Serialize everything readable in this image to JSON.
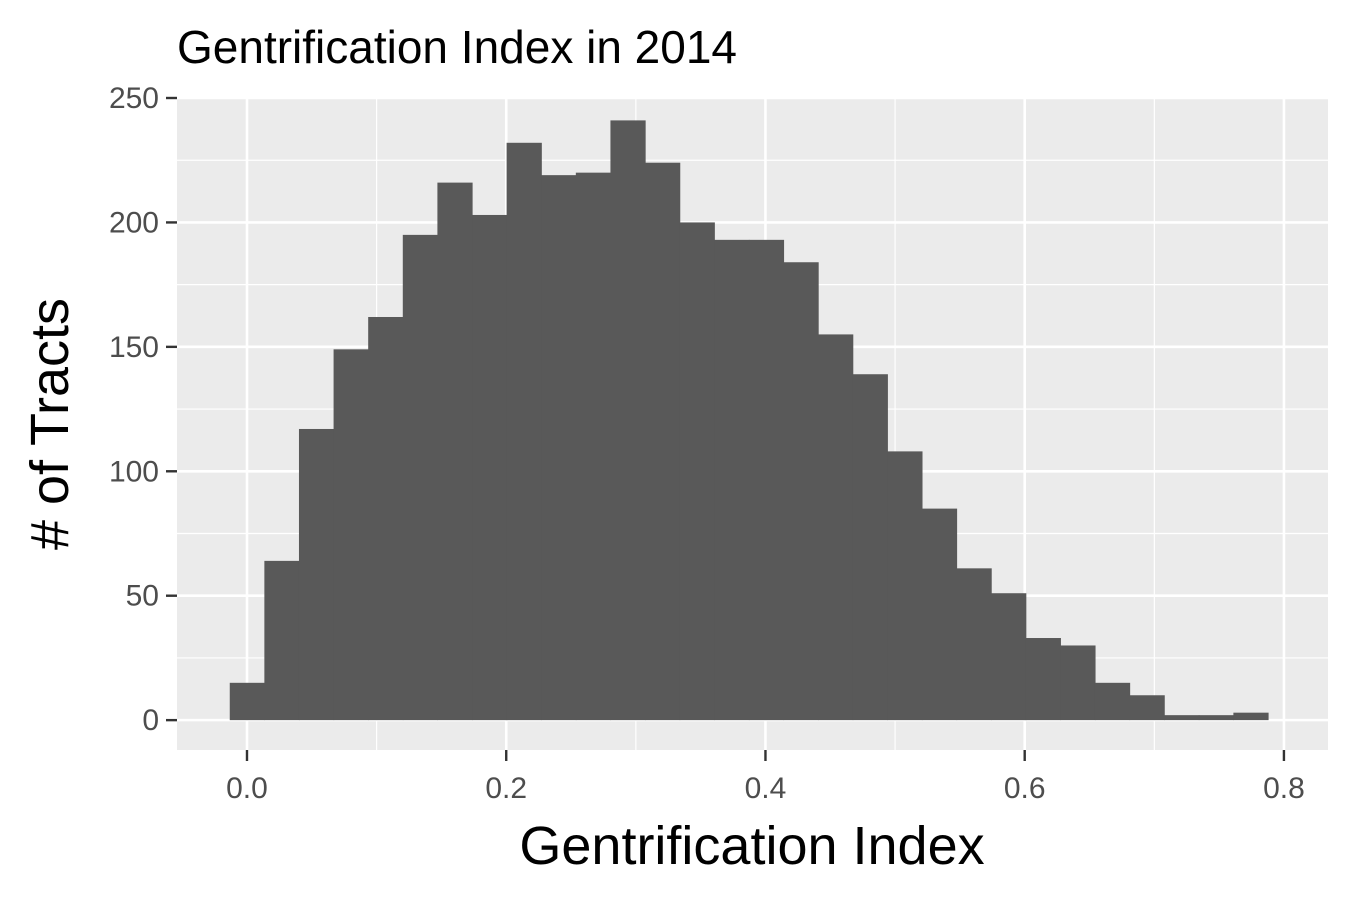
{
  "chart_data": {
    "type": "bar",
    "subtype": "histogram",
    "title": "Gentrification Index in 2014",
    "xlabel": "Gentrification Index",
    "ylabel": "# of Tracts",
    "xlim": [
      -0.054,
      0.834
    ],
    "ylim": [
      -12,
      250
    ],
    "x_ticks": [
      "0.0",
      "0.2",
      "0.4",
      "0.6",
      "0.8"
    ],
    "y_ticks": [
      "0",
      "50",
      "100",
      "150",
      "200",
      "250"
    ],
    "grid": true,
    "legend": "none",
    "bin_width": 0.0267,
    "bin_start": -0.0133,
    "counts": [
      15,
      64,
      117,
      149,
      162,
      195,
      216,
      203,
      232,
      219,
      220,
      241,
      224,
      200,
      193,
      193,
      184,
      155,
      139,
      108,
      85,
      61,
      51,
      33,
      30,
      15,
      10,
      2,
      2,
      3
    ],
    "colors": {
      "panel": "#ebebeb",
      "grid": "#ffffff",
      "bar": "#595959",
      "axis_text": "#4d4d4d"
    }
  }
}
